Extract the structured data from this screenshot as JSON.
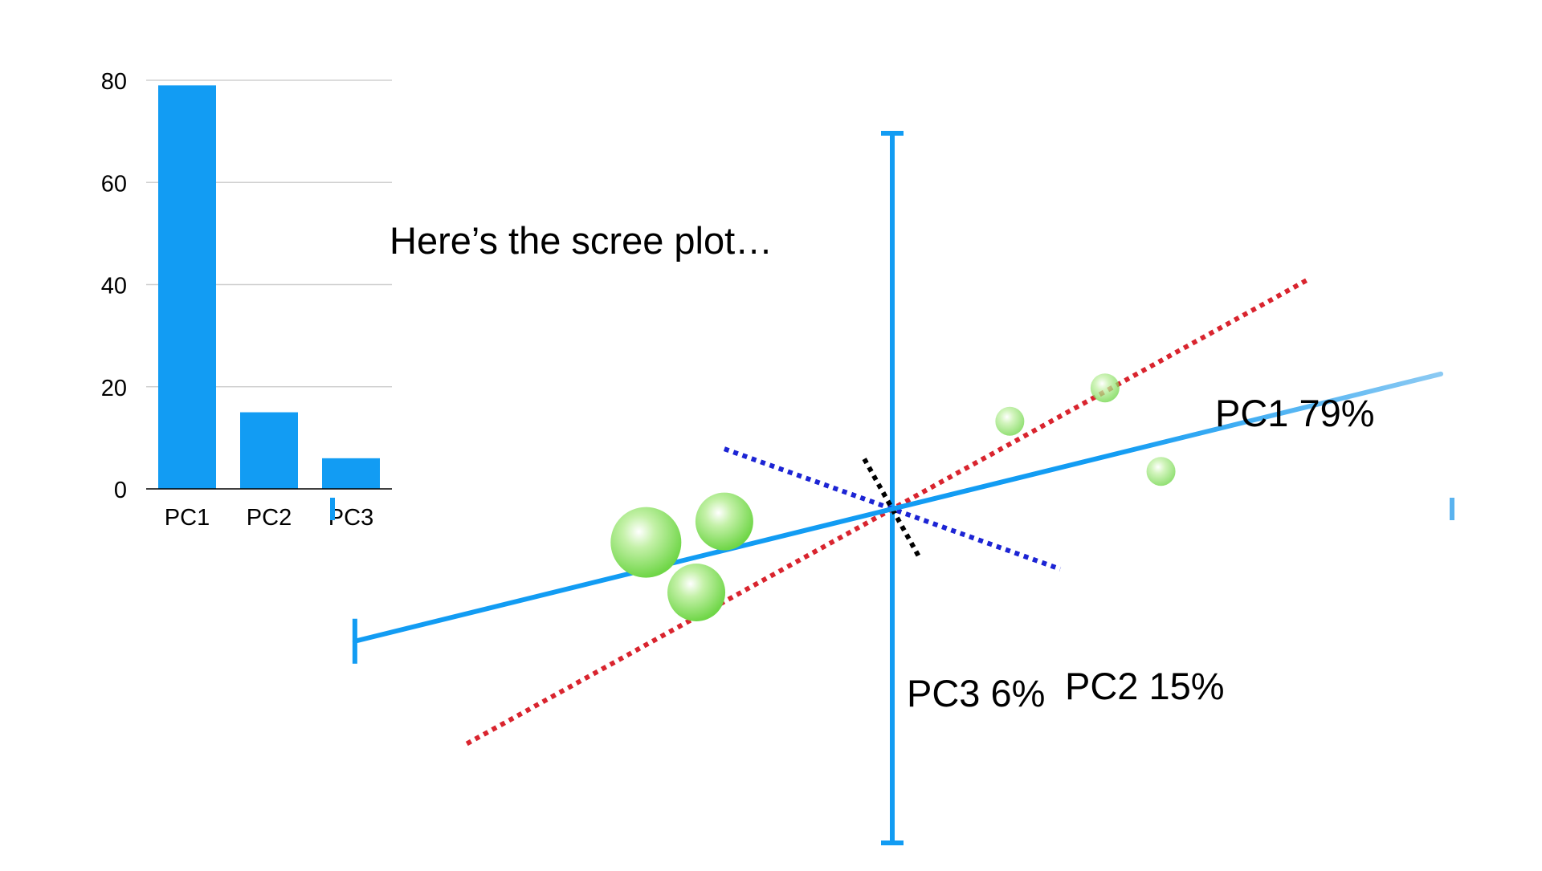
{
  "caption": "Here’s the scree plot…",
  "pc_labels": {
    "pc1": "PC1 79%",
    "pc2": "PC2 15%",
    "pc3": "PC3 6%"
  },
  "colors": {
    "bar": "#129cf3",
    "axis": "#129cf3",
    "pc1_line": "#d9242e",
    "pc2_line": "#1c24d4",
    "pc3_line": "#000000",
    "points": "#7ed957",
    "grid": "#d0d0d0"
  },
  "chart_data": [
    {
      "type": "bar",
      "categories": [
        "PC1",
        "PC2",
        "PC3"
      ],
      "values": [
        79,
        15,
        6
      ],
      "title": "",
      "xlabel": "",
      "ylabel": "",
      "ylim": [
        0,
        80
      ],
      "yticks": [
        0,
        20,
        40,
        60,
        80
      ],
      "grid": true
    },
    {
      "type": "scatter",
      "title": "",
      "xlabel": "",
      "ylabel": "",
      "xlim": [
        -5,
        5
      ],
      "ylim": [
        -4,
        4.5
      ],
      "points": [
        {
          "x": -2.2,
          "y": -0.4
        },
        {
          "x": -1.5,
          "y": -0.15
        },
        {
          "x": -1.75,
          "y": -1.0
        },
        {
          "x": 1.05,
          "y": 1.05
        },
        {
          "x": 1.9,
          "y": 1.45
        },
        {
          "x": 2.4,
          "y": 0.45
        }
      ],
      "principal_axes": [
        {
          "name": "PC1 79%",
          "slope": 0.74
        },
        {
          "name": "PC2 15%",
          "slope": -0.48
        },
        {
          "name": "PC3 6%",
          "slope": -2.4
        }
      ],
      "fitted_line_slope": 0.33
    }
  ]
}
